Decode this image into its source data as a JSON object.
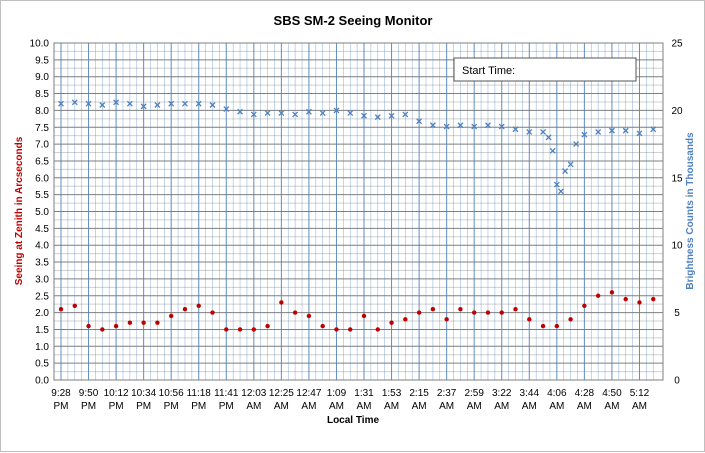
{
  "chart_data": {
    "type": "scatter",
    "title": "SBS SM-2 Seeing Monitor",
    "xlabel": "Local Time",
    "ylabel_left": "Seeing at Zenith in Arcseconds",
    "ylabel_right": "Brightness Counts in Thousands",
    "start_time_label": "Start Time:",
    "y_left": {
      "min": 0,
      "max": 10,
      "step": 0.25,
      "label_step": 0.5
    },
    "y_right": {
      "min": 0,
      "max": 25,
      "label_step": 5
    },
    "x_ticks": [
      [
        "9:28",
        "PM"
      ],
      [
        "9:50",
        "PM"
      ],
      [
        "10:12",
        "PM"
      ],
      [
        "10:34",
        "PM"
      ],
      [
        "10:56",
        "PM"
      ],
      [
        "11:18",
        "PM"
      ],
      [
        "11:41",
        "PM"
      ],
      [
        "12:03",
        "AM"
      ],
      [
        "12:25",
        "AM"
      ],
      [
        "12:47",
        "AM"
      ],
      [
        "1:09",
        "AM"
      ],
      [
        "1:31",
        "AM"
      ],
      [
        "1:53",
        "AM"
      ],
      [
        "2:15",
        "AM"
      ],
      [
        "2:37",
        "AM"
      ],
      [
        "2:59",
        "AM"
      ],
      [
        "3:22",
        "AM"
      ],
      [
        "3:44",
        "AM"
      ],
      [
        "4:06",
        "AM"
      ],
      [
        "4:28",
        "AM"
      ],
      [
        "4:50",
        "AM"
      ],
      [
        "5:12",
        "AM"
      ]
    ],
    "x_range_ticks": [
      0,
      21.6
    ],
    "grid": true,
    "colors": {
      "seeing": "#c00000",
      "brightness": "#4f81bd",
      "grid_major": "#7f7f7f",
      "grid_minor": "#d0d0d0",
      "x_grid": "#4f81bd"
    },
    "series": [
      {
        "name": "",
        "axis": "left",
        "marker": "dot",
        "x": [
          0.0,
          0.5,
          1.0,
          1.5,
          2.0,
          2.5,
          3.0,
          3.5,
          4.0,
          4.5,
          5.0,
          5.5,
          6.0,
          6.5,
          7.0,
          7.5,
          8.0,
          8.5,
          9.0,
          9.5,
          10.0,
          10.5,
          11.0,
          11.5,
          12.0,
          12.5,
          13.0,
          13.5,
          14.0,
          14.5,
          15.0,
          15.5,
          16.0,
          16.5,
          17.0,
          17.5,
          18.0,
          18.5,
          19.0,
          19.5,
          20.0,
          20.5,
          21.0,
          21.5
        ],
        "y": [
          2.1,
          2.2,
          1.6,
          1.5,
          1.6,
          1.7,
          1.7,
          1.7,
          1.9,
          2.1,
          2.2,
          2.0,
          1.5,
          1.5,
          1.5,
          1.6,
          2.3,
          2.0,
          1.9,
          1.6,
          1.5,
          1.5,
          1.9,
          1.5,
          1.7,
          1.8,
          2.0,
          2.1,
          1.8,
          2.1,
          2.0,
          2.0,
          2.0,
          2.1,
          1.8,
          1.6,
          1.6,
          1.8,
          2.2,
          2.5,
          2.6,
          2.4,
          2.3,
          2.4
        ]
      },
      {
        "name": "",
        "axis": "right",
        "marker": "x",
        "x": [
          0.0,
          0.5,
          1.0,
          1.5,
          2.0,
          2.5,
          3.0,
          3.5,
          4.0,
          4.5,
          5.0,
          5.5,
          6.0,
          6.5,
          7.0,
          7.5,
          8.0,
          8.5,
          9.0,
          9.5,
          10.0,
          10.5,
          11.0,
          11.5,
          12.0,
          12.5,
          13.0,
          13.5,
          14.0,
          14.5,
          15.0,
          15.5,
          16.0,
          16.5,
          17.0,
          17.5,
          17.7,
          17.85,
          18.0,
          18.15,
          18.3,
          18.5,
          18.7,
          19.0,
          19.5,
          20.0,
          20.5,
          21.0,
          21.5
        ],
        "y": [
          20.5,
          20.6,
          20.5,
          20.4,
          20.6,
          20.5,
          20.3,
          20.4,
          20.5,
          20.5,
          20.5,
          20.4,
          20.1,
          19.9,
          19.7,
          19.8,
          19.8,
          19.7,
          19.9,
          19.8,
          20.0,
          19.8,
          19.6,
          19.5,
          19.6,
          19.7,
          19.2,
          18.9,
          18.8,
          18.9,
          18.8,
          18.9,
          18.8,
          18.6,
          18.4,
          18.4,
          18.0,
          17.0,
          14.5,
          14.0,
          15.5,
          16.0,
          17.5,
          18.2,
          18.4,
          18.5,
          18.5,
          18.3,
          18.6
        ]
      }
    ]
  }
}
